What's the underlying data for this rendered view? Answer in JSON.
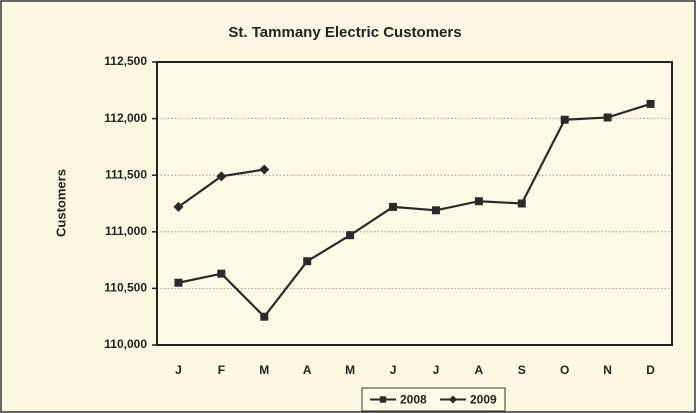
{
  "chart_data": {
    "type": "line",
    "title": "St. Tammany Electric Customers",
    "ylabel": "Customers",
    "categories": [
      "J",
      "F",
      "M",
      "A",
      "M",
      "J",
      "J",
      "A",
      "S",
      "O",
      "N",
      "D"
    ],
    "series": [
      {
        "name": "2008",
        "color": "#2a2a2a",
        "marker": "square",
        "values": [
          110550,
          110630,
          110250,
          110740,
          110970,
          111220,
          111190,
          111270,
          111250,
          111990,
          112010,
          112130
        ]
      },
      {
        "name": "2009",
        "color": "#2a2a2a",
        "marker": "diamond",
        "values": [
          111220,
          111490,
          111550,
          null,
          null,
          null,
          null,
          null,
          null,
          null,
          null,
          null
        ]
      }
    ],
    "ylim": [
      110000,
      112500
    ],
    "yticks": [
      {
        "value": 110000,
        "label": "110,000"
      },
      {
        "value": 110500,
        "label": "110,500"
      },
      {
        "value": 111000,
        "label": "111,000"
      },
      {
        "value": 111500,
        "label": "111,500"
      },
      {
        "value": 112000,
        "label": "112,000"
      },
      {
        "value": 112500,
        "label": "112,500"
      }
    ],
    "grid": true,
    "legend": "bottom"
  }
}
